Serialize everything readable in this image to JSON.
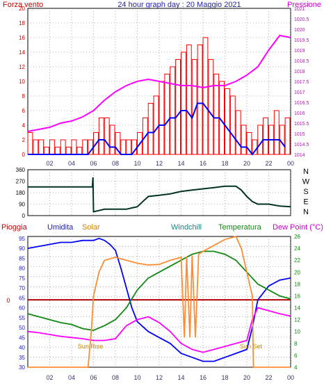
{
  "header": {
    "left_label": "Forza vento",
    "title": "24 hour graph day : 20 Maggio 2021",
    "right_label": "Pressione"
  },
  "legend_bottom": {
    "pioggia": "Pioggia",
    "umidita": "Umidita",
    "solar": "Solar",
    "windchill": "Windchill",
    "temperatura": "Temperatura",
    "dewpoint": "Dew Point (°C)"
  },
  "annotations": {
    "sun_rise": "Sun Rise",
    "sun_set": "Sun Set",
    "rain_zero": "0"
  },
  "compass": [
    "N",
    "W",
    "S",
    "E",
    "N"
  ],
  "colors": {
    "wind_gust": "#ff0000",
    "wind_avg": "#0000ff",
    "pressure": "#ff00ff",
    "direction": "#003322",
    "humidity": "#0000ff",
    "solar": "#ff8c33",
    "windchill": "#ff00ff",
    "temperature": "#118811",
    "dewpoint": "#ff00ff",
    "rain": "#b00000"
  },
  "chart_data": [
    {
      "type": "line",
      "x_ticks": [
        "02",
        "04",
        "06",
        "08",
        "10",
        "12",
        "14",
        "16",
        "18",
        "20",
        "22",
        "00"
      ],
      "xlim": [
        0,
        24
      ],
      "ylim": [
        0,
        20
      ],
      "y_ticks": [
        "0",
        "2",
        "4",
        "6",
        "8",
        "10",
        "12",
        "14",
        "16",
        "18",
        "20"
      ],
      "y2lim": [
        1014,
        1021
      ],
      "y2_ticks": [
        "1014",
        "1014.5",
        "1015",
        "1015.5",
        "1016",
        "1016.5",
        "1017",
        "1017.5",
        "1018",
        "1018.5",
        "1019",
        "1019.5",
        "1020",
        "1020.5",
        "1021"
      ],
      "series": [
        {
          "key": "wind_gust",
          "x": [
            0,
            0.5,
            1,
            1.5,
            2,
            2.5,
            3,
            3.5,
            4,
            4.5,
            5,
            5.5,
            6,
            6.5,
            7,
            7.5,
            8,
            8.5,
            9,
            9.5,
            10,
            10.5,
            11,
            11.5,
            12,
            12.5,
            13,
            13.5,
            14,
            14.5,
            15,
            15.5,
            16,
            16.5,
            17,
            17.5,
            18,
            18.5,
            19,
            19.5,
            20,
            20.5,
            21,
            21.5,
            22,
            22.5,
            23,
            23.5
          ],
          "values": [
            3,
            2,
            2,
            1,
            2,
            1,
            2,
            1,
            2,
            1,
            2,
            2,
            3,
            5,
            5,
            4,
            3,
            2,
            2,
            2,
            3,
            5,
            7,
            8,
            10,
            11,
            12,
            13,
            14,
            15,
            13,
            15,
            16,
            13,
            11,
            10,
            9,
            8,
            6,
            4,
            3,
            2,
            4,
            5,
            4,
            6,
            4,
            5
          ]
        },
        {
          "key": "wind_avg",
          "x": [
            0,
            0.5,
            1,
            1.5,
            2,
            2.5,
            3,
            3.5,
            4,
            4.5,
            5,
            5.5,
            6,
            6.5,
            7,
            7.5,
            8,
            8.5,
            9,
            9.5,
            10,
            10.5,
            11,
            11.5,
            12,
            12.5,
            13,
            13.5,
            14,
            14.5,
            15,
            15.5,
            16,
            16.5,
            17,
            17.5,
            18,
            18.5,
            19,
            19.5,
            20,
            20.5,
            21,
            21.5,
            22,
            22.5,
            23,
            23.5
          ],
          "values": [
            0,
            0,
            0,
            0,
            0,
            0,
            0,
            0,
            0,
            0,
            0,
            0,
            1,
            2,
            2,
            1,
            1,
            0,
            0,
            0,
            1,
            2,
            3,
            3,
            4,
            4,
            5,
            5,
            6,
            6,
            5,
            7,
            7,
            6,
            5,
            5,
            4,
            3,
            2,
            1,
            1,
            0,
            1,
            2,
            2,
            2,
            2,
            1
          ]
        },
        {
          "key": "pressure",
          "x": [
            0,
            1,
            2,
            3,
            4,
            5,
            6,
            7,
            8,
            9,
            10,
            11,
            12,
            13,
            14,
            15,
            16,
            17,
            18,
            19,
            20,
            21,
            22,
            23,
            24
          ],
          "values": [
            1015.1,
            1015.2,
            1015.3,
            1015.5,
            1015.6,
            1015.8,
            1016.1,
            1016.6,
            1017,
            1017.3,
            1017.5,
            1017.6,
            1017.5,
            1017.4,
            1017.3,
            1017.3,
            1017.2,
            1017.3,
            1017.3,
            1017.5,
            1017.8,
            1018.2,
            1019,
            1019.7,
            1019.6
          ]
        }
      ]
    },
    {
      "type": "line",
      "xlim": [
        0,
        24
      ],
      "ylim": [
        0,
        360
      ],
      "y_ticks": [
        "0",
        "90",
        "180",
        "270",
        "360"
      ],
      "y_tick_values": [
        0,
        90,
        180,
        270,
        360
      ],
      "series": [
        {
          "key": "direction",
          "x": [
            0,
            5.9,
            5.95,
            6,
            6.5,
            7,
            8,
            9,
            9.5,
            10,
            10.5,
            11,
            12,
            13,
            14,
            15,
            16,
            17,
            18,
            19,
            19.5,
            20,
            20.5,
            21,
            22,
            23,
            24
          ],
          "values": [
            225,
            225,
            300,
            30,
            40,
            50,
            50,
            50,
            60,
            70,
            110,
            150,
            160,
            170,
            190,
            200,
            210,
            220,
            230,
            230,
            200,
            150,
            110,
            90,
            90,
            75,
            70
          ]
        }
      ]
    },
    {
      "type": "line",
      "xlim": [
        0,
        24
      ],
      "ylim": [
        30,
        96
      ],
      "y_ticks": [
        "30",
        "35",
        "40",
        "45",
        "50",
        "55",
        "60",
        "65",
        "70",
        "75",
        "80",
        "85",
        "90",
        "95"
      ],
      "y2lim": [
        4,
        26
      ],
      "y2_ticks": [
        "4",
        "6",
        "8",
        "10",
        "12",
        "14",
        "16",
        "18",
        "20",
        "22",
        "24",
        "26"
      ],
      "series": [
        {
          "key": "humidity",
          "axis": "left",
          "x": [
            0,
            1,
            2,
            3,
            4,
            5,
            6,
            6.5,
            7,
            7.5,
            8,
            8.5,
            9,
            9.5,
            10,
            11,
            12,
            13,
            14,
            15,
            16,
            17,
            18,
            19,
            20,
            20.5,
            21,
            22,
            23,
            24
          ],
          "values": [
            90,
            91,
            92,
            93,
            93,
            94,
            94,
            95,
            94,
            92,
            89,
            80,
            70,
            60,
            53,
            48,
            45,
            42,
            37,
            35,
            33,
            33,
            35,
            37,
            39,
            50,
            64,
            71,
            74,
            75
          ]
        },
        {
          "key": "temperature",
          "axis": "right",
          "x": [
            0,
            1,
            2,
            3,
            4,
            5,
            6,
            7,
            8,
            9,
            10,
            11,
            12,
            13,
            14,
            15,
            16,
            17,
            18,
            19,
            20,
            21,
            22,
            23,
            24
          ],
          "values": [
            13,
            12.5,
            12,
            11.5,
            11.2,
            10.5,
            10.2,
            11,
            12,
            14,
            17,
            19,
            20,
            21,
            22,
            23,
            23.5,
            23.5,
            23,
            22,
            20,
            18,
            17,
            16,
            15.5
          ]
        },
        {
          "key": "dewpoint",
          "axis": "right",
          "x": [
            0,
            1,
            2,
            3,
            4,
            5,
            6,
            7,
            8,
            9,
            10,
            11,
            12,
            13,
            14,
            15,
            16,
            17,
            18,
            19,
            20,
            20.5,
            21,
            22,
            23,
            24
          ],
          "values": [
            10,
            9.8,
            9.5,
            9.2,
            9,
            8.8,
            8.5,
            8.5,
            8.8,
            11,
            12,
            12.5,
            11.5,
            10,
            8,
            7,
            6.5,
            7,
            7.5,
            8,
            8.5,
            12,
            14,
            13.5,
            13,
            12.6
          ]
        },
        {
          "key": "solar",
          "axis": "right",
          "x": [
            0,
            5.5,
            5.6,
            5.8,
            6,
            6.5,
            7,
            8,
            9,
            10,
            11,
            12,
            13,
            14,
            14.3,
            14.5,
            14.8,
            15,
            15.3,
            15.6,
            16,
            17,
            18,
            19,
            19.5,
            20,
            20.5,
            20.6,
            24
          ],
          "values": [
            4,
            4,
            6,
            10,
            16,
            20,
            22,
            22.5,
            22,
            21.5,
            21.2,
            21.3,
            22,
            22.5,
            9,
            22.6,
            9,
            22.8,
            9,
            23,
            23.5,
            24.5,
            25.5,
            26,
            24,
            20,
            16,
            4,
            4
          ]
        }
      ],
      "rain_zero_line": 64
    }
  ]
}
